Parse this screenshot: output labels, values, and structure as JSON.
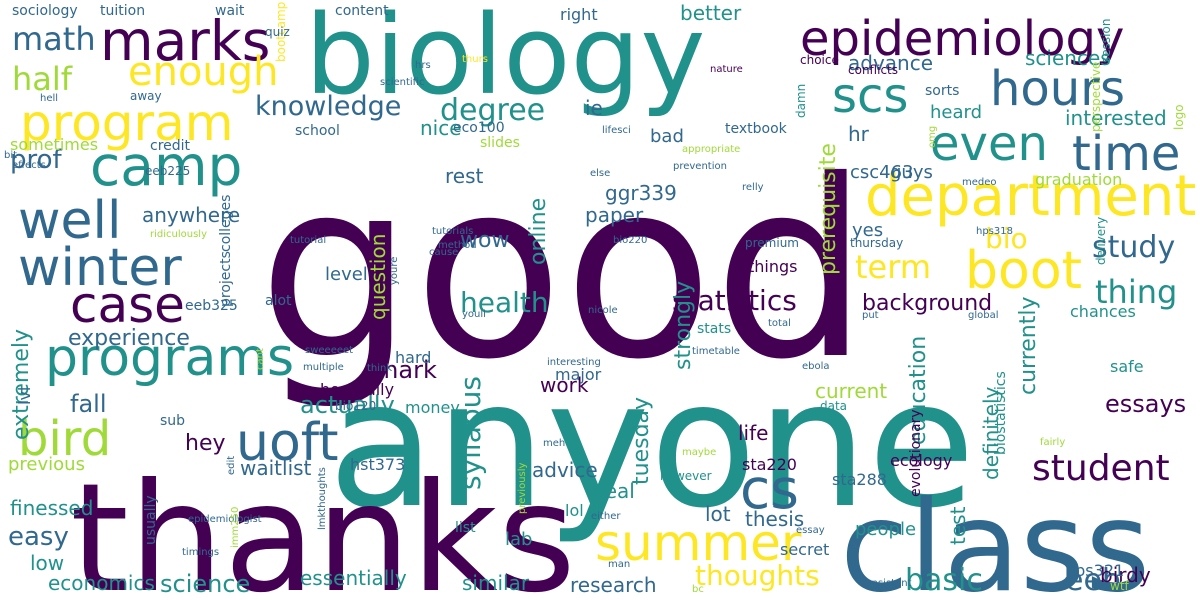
{
  "words": [
    {
      "text": "good",
      "color": "#440154",
      "vertical": false
    },
    {
      "text": "anyone",
      "color": "#21918c",
      "vertical": false
    },
    {
      "text": "thanks",
      "color": "#440154",
      "vertical": false
    },
    {
      "text": "biology",
      "color": "#21918c",
      "vertical": false
    },
    {
      "text": "class",
      "color": "#31688e",
      "vertical": false
    },
    {
      "text": "epidemiology",
      "color": "#440154",
      "vertical": false
    },
    {
      "text": "department",
      "color": "#fde725",
      "vertical": false
    },
    {
      "text": "programs",
      "color": "#21918c",
      "vertical": false
    },
    {
      "text": "program",
      "color": "#fde725",
      "vertical": false
    },
    {
      "text": "marks",
      "color": "#440154",
      "vertical": false
    },
    {
      "text": "winter",
      "color": "#31688e",
      "vertical": false
    },
    {
      "text": "camp",
      "color": "#21918c",
      "vertical": false
    },
    {
      "text": "well",
      "color": "#31688e",
      "vertical": false
    },
    {
      "text": "case",
      "color": "#440154",
      "vertical": false
    },
    {
      "text": "bird",
      "color": "#a0da39",
      "vertical": false
    },
    {
      "text": "uoft",
      "color": "#31688e",
      "vertical": false
    },
    {
      "text": "hours",
      "color": "#31688e",
      "vertical": false
    },
    {
      "text": "even",
      "color": "#21918c",
      "vertical": false
    },
    {
      "text": "time",
      "color": "#31688e",
      "vertical": false
    },
    {
      "text": "scs",
      "color": "#21918c",
      "vertical": false
    },
    {
      "text": "boot",
      "color": "#fde725",
      "vertical": false
    },
    {
      "text": "summer",
      "color": "#fde725",
      "vertical": false
    },
    {
      "text": "cs",
      "color": "#31688e",
      "vertical": false
    },
    {
      "text": "student",
      "color": "#440154",
      "vertical": false
    },
    {
      "text": "enough",
      "color": "#fde725",
      "vertical": false
    },
    {
      "text": "half",
      "color": "#a0da39",
      "vertical": false
    },
    {
      "text": "math",
      "color": "#31688e",
      "vertical": false
    },
    {
      "text": "knowledge",
      "color": "#31688e",
      "vertical": false
    },
    {
      "text": "degree",
      "color": "#21918c",
      "vertical": false
    },
    {
      "text": "statistics",
      "color": "#440154",
      "vertical": false
    },
    {
      "text": "health",
      "color": "#21918c",
      "vertical": false
    },
    {
      "text": "study",
      "color": "#31688e",
      "vertical": false
    },
    {
      "text": "term",
      "color": "#fde725",
      "vertical": false
    },
    {
      "text": "bio",
      "color": "#fde725",
      "vertical": false
    },
    {
      "text": "thing",
      "color": "#21918c",
      "vertical": false
    },
    {
      "text": "basic",
      "color": "#21918c",
      "vertical": false
    },
    {
      "text": "thoughts",
      "color": "#fde725",
      "vertical": false
    },
    {
      "text": "eeb",
      "color": "#31688e",
      "vertical": false
    },
    {
      "text": "prof",
      "color": "#31688e",
      "vertical": false
    },
    {
      "text": "experience",
      "color": "#31688e",
      "vertical": false
    },
    {
      "text": "syllabus",
      "color": "#21918c",
      "vertical": true
    },
    {
      "text": "background",
      "color": "#440154",
      "vertical": false
    },
    {
      "text": "mark",
      "color": "#440154",
      "vertical": false
    },
    {
      "text": "actually",
      "color": "#21918c",
      "vertical": false
    },
    {
      "text": "fall",
      "color": "#31688e",
      "vertical": false
    },
    {
      "text": "hey",
      "color": "#440154",
      "vertical": false
    },
    {
      "text": "waitlist",
      "color": "#31688e",
      "vertical": false
    },
    {
      "text": "advice",
      "color": "#31688e",
      "vertical": false
    },
    {
      "text": "life",
      "color": "#440154",
      "vertical": false
    },
    {
      "text": "work",
      "color": "#440154",
      "vertical": false
    },
    {
      "text": "essays",
      "color": "#440154",
      "vertical": false
    },
    {
      "text": "easy",
      "color": "#31688e",
      "vertical": false
    },
    {
      "text": "low",
      "color": "#21918c",
      "vertical": false
    },
    {
      "text": "economics",
      "color": "#21918c",
      "vertical": false
    },
    {
      "text": "science",
      "color": "#21918c",
      "vertical": false
    },
    {
      "text": "essentially",
      "color": "#21918c",
      "vertical": false
    },
    {
      "text": "similar",
      "color": "#21918c",
      "vertical": false
    },
    {
      "text": "research",
      "color": "#31688e",
      "vertical": false
    },
    {
      "text": "thesis",
      "color": "#31688e",
      "vertical": false
    },
    {
      "text": "lot",
      "color": "#31688e",
      "vertical": false
    },
    {
      "text": "deal",
      "color": "#21918c",
      "vertical": false
    },
    {
      "text": "lab",
      "color": "#21918c",
      "vertical": false
    },
    {
      "text": "secret",
      "color": "#31688e",
      "vertical": false
    },
    {
      "text": "people",
      "color": "#21918c",
      "vertical": false
    },
    {
      "text": "birdy",
      "color": "#440154",
      "vertical": false
    },
    {
      "text": "test",
      "color": "#21918c",
      "vertical": true
    },
    {
      "text": "currently",
      "color": "#21918c",
      "vertical": true
    },
    {
      "text": "definitely",
      "color": "#21918c",
      "vertical": true
    },
    {
      "text": "education",
      "color": "#21918c",
      "vertical": true
    },
    {
      "text": "strongly",
      "color": "#21918c",
      "vertical": true
    },
    {
      "text": "online",
      "color": "#21918c",
      "vertical": true
    },
    {
      "text": "tuesday",
      "color": "#21918c",
      "vertical": true
    },
    {
      "text": "prerequisite",
      "color": "#a0da39",
      "vertical": true
    },
    {
      "text": "extremely",
      "color": "#21918c",
      "vertical": true
    },
    {
      "text": "question",
      "color": "#a0da39",
      "vertical": true
    },
    {
      "text": "level",
      "color": "#31688e",
      "vertical": false
    },
    {
      "text": "things",
      "color": "#440154",
      "vertical": false
    },
    {
      "text": "yes",
      "color": "#31688e",
      "vertical": false
    },
    {
      "text": "csc463",
      "color": "#31688e",
      "vertical": false
    },
    {
      "text": "hr",
      "color": "#31688e",
      "vertical": false
    },
    {
      "text": "guys",
      "color": "#31688e",
      "vertical": false
    },
    {
      "text": "graduation",
      "color": "#a0da39",
      "vertical": false
    },
    {
      "text": "interested",
      "color": "#21918c",
      "vertical": false
    },
    {
      "text": "sciences",
      "color": "#21918c",
      "vertical": false
    },
    {
      "text": "heard",
      "color": "#21918c",
      "vertical": false
    },
    {
      "text": "advance",
      "color": "#31688e",
      "vertical": false
    },
    {
      "text": "anywhere",
      "color": "#31688e",
      "vertical": false
    },
    {
      "text": "sta220",
      "color": "#440154",
      "vertical": false
    },
    {
      "text": "sta288",
      "color": "#31688e",
      "vertical": false
    },
    {
      "text": "ecology",
      "color": "#440154",
      "vertical": false
    },
    {
      "text": "previous",
      "color": "#a0da39",
      "vertical": false
    },
    {
      "text": "finessed",
      "color": "#21918c",
      "vertical": false
    },
    {
      "text": "paper",
      "color": "#31688e",
      "vertical": false
    },
    {
      "text": "ggr339",
      "color": "#31688e",
      "vertical": false
    },
    {
      "text": "wow",
      "color": "#31688e",
      "vertical": false
    },
    {
      "text": "rest",
      "color": "#31688e",
      "vertical": false
    },
    {
      "text": "bad",
      "color": "#31688e",
      "vertical": false
    },
    {
      "text": "ie",
      "color": "#31688e",
      "vertical": false
    },
    {
      "text": "nice",
      "color": "#21918c",
      "vertical": false
    },
    {
      "text": "right",
      "color": "#31688e",
      "vertical": false
    },
    {
      "text": "better",
      "color": "#21918c",
      "vertical": false
    },
    {
      "text": "current",
      "color": "#a0da39",
      "vertical": false
    },
    {
      "text": "chances",
      "color": "#21918c",
      "vertical": false
    },
    {
      "text": "safe",
      "color": "#21918c",
      "vertical": false
    },
    {
      "text": "hopefully",
      "color": "#440154",
      "vertical": false
    },
    {
      "text": "hard",
      "color": "#31688e",
      "vertical": false
    },
    {
      "text": "major",
      "color": "#31688e",
      "vertical": false
    },
    {
      "text": "money",
      "color": "#21918c",
      "vertical": false
    },
    {
      "text": "alot",
      "color": "#31688e",
      "vertical": false
    },
    {
      "text": "wait",
      "color": "#31688e",
      "vertical": false
    },
    {
      "text": "tuition",
      "color": "#31688e",
      "vertical": false
    },
    {
      "text": "sociology",
      "color": "#31688e",
      "vertical": false
    },
    {
      "text": "content",
      "color": "#31688e",
      "vertical": false
    },
    {
      "text": "away",
      "color": "#31688e",
      "vertical": false
    },
    {
      "text": "credit",
      "color": "#31688e",
      "vertical": false
    },
    {
      "text": "sometimes",
      "color": "#a0da39",
      "vertical": false
    },
    {
      "text": "textbook",
      "color": "#31688e",
      "vertical": false
    },
    {
      "text": "sorts",
      "color": "#31688e",
      "vertical": false
    },
    {
      "text": "school",
      "color": "#31688e",
      "vertical": false
    },
    {
      "text": "slides",
      "color": "#a0da39",
      "vertical": false
    },
    {
      "text": "eco100",
      "color": "#31688e",
      "vertical": false
    },
    {
      "text": "hst373",
      "color": "#31688e",
      "vertical": false
    },
    {
      "text": "lol",
      "color": "#21918c",
      "vertical": false
    },
    {
      "text": "bio120",
      "color": "#31688e",
      "vertical": false
    },
    {
      "text": "eeb225",
      "color": "#31688e",
      "vertical": false
    },
    {
      "text": "eeb325",
      "color": "#31688e",
      "vertical": false
    },
    {
      "text": "sub",
      "color": "#31688e",
      "vertical": false
    },
    {
      "text": "hps321",
      "color": "#31688e",
      "vertical": false
    },
    {
      "text": "wtf",
      "color": "#a0da39",
      "vertical": false
    },
    {
      "text": "delivery",
      "color": "#21918c",
      "vertical": true
    },
    {
      "text": "data",
      "color": "#21918c",
      "vertical": false
    },
    {
      "text": "premium",
      "color": "#31688e",
      "vertical": false
    },
    {
      "text": "thursday",
      "color": "#31688e",
      "vertical": false
    },
    {
      "text": "stats",
      "color": "#21918c",
      "vertical": false
    },
    {
      "text": "however",
      "color": "#21918c",
      "vertical": false
    },
    {
      "text": "list",
      "color": "#21918c",
      "vertical": false
    },
    {
      "text": "projects",
      "color": "#31688e",
      "vertical": true
    },
    {
      "text": "colleges",
      "color": "#31688e",
      "vertical": true
    },
    {
      "text": "usually",
      "color": "#31688e",
      "vertical": true
    },
    {
      "text": "lvl",
      "color": "#31688e",
      "vertical": true
    },
    {
      "text": "biostatistics",
      "color": "#21918c",
      "vertical": true
    },
    {
      "text": "evolutionary",
      "color": "#440154",
      "vertical": true
    },
    {
      "text": "bootcamp",
      "color": "#fde725",
      "vertical": true
    },
    {
      "text": "damn",
      "color": "#21918c",
      "vertical": true
    },
    {
      "text": "logo",
      "color": "#a0da39",
      "vertical": true
    },
    {
      "text": "perspective",
      "color": "#a0da39",
      "vertical": true
    },
    {
      "text": "session",
      "color": "#21918c",
      "vertical": true
    },
    {
      "text": "choice",
      "color": "#440154",
      "vertical": false
    },
    {
      "text": "conflicts",
      "color": "#440154",
      "vertical": false
    },
    {
      "text": "nature",
      "color": "#440154",
      "vertical": false
    },
    {
      "text": "thurs",
      "color": "#fde725",
      "vertical": false
    },
    {
      "text": "hrs",
      "color": "#31688e",
      "vertical": false
    },
    {
      "text": "quiz",
      "color": "#31688e",
      "vertical": false
    },
    {
      "text": "hell",
      "color": "#31688e",
      "vertical": false
    },
    {
      "text": "bit",
      "color": "#31688e",
      "vertical": false
    },
    {
      "text": "effects",
      "color": "#31688e",
      "vertical": false
    },
    {
      "text": "ridiculously",
      "color": "#a0da39",
      "vertical": false
    },
    {
      "text": "lifesci",
      "color": "#31688e",
      "vertical": false
    },
    {
      "text": "appropriate",
      "color": "#a0da39",
      "vertical": false
    },
    {
      "text": "prevention",
      "color": "#31688e",
      "vertical": false
    },
    {
      "text": "else",
      "color": "#31688e",
      "vertical": false
    },
    {
      "text": "relly",
      "color": "#31688e",
      "vertical": false
    },
    {
      "text": "medeo",
      "color": "#31688e",
      "vertical": false
    },
    {
      "text": "method",
      "color": "#31688e",
      "vertical": false
    },
    {
      "text": "tutorials",
      "color": "#31688e",
      "vertical": false
    },
    {
      "text": "bio220",
      "color": "#31688e",
      "vertical": false
    },
    {
      "text": "tutorial",
      "color": "#31688e",
      "vertical": false
    },
    {
      "text": "hps318",
      "color": "#31688e",
      "vertical": false
    },
    {
      "text": "put",
      "color": "#31688e",
      "vertical": false
    },
    {
      "text": "global",
      "color": "#31688e",
      "vertical": false
    },
    {
      "text": "total",
      "color": "#31688e",
      "vertical": false
    },
    {
      "text": "timetable",
      "color": "#31688e",
      "vertical": false
    },
    {
      "text": "ebola",
      "color": "#31688e",
      "vertical": false
    },
    {
      "text": "think",
      "color": "#31688e",
      "vertical": false
    },
    {
      "text": "youll",
      "color": "#31688e",
      "vertical": false
    },
    {
      "text": "nicole",
      "color": "#31688e",
      "vertical": false
    },
    {
      "text": "sweeeeet",
      "color": "#31688e",
      "vertical": false
    },
    {
      "text": "multiple",
      "color": "#31688e",
      "vertical": false
    },
    {
      "text": "interesting",
      "color": "#31688e",
      "vertical": false
    },
    {
      "text": "meh",
      "color": "#31688e",
      "vertical": false
    },
    {
      "text": "maybe",
      "color": "#a0da39",
      "vertical": false
    },
    {
      "text": "fairly",
      "color": "#a0da39",
      "vertical": false
    },
    {
      "text": "edit",
      "color": "#31688e",
      "vertical": true
    },
    {
      "text": "either",
      "color": "#31688e",
      "vertical": false
    },
    {
      "text": "essay",
      "color": "#31688e",
      "vertical": false
    },
    {
      "text": "epidemiologist",
      "color": "#31688e",
      "vertical": false
    },
    {
      "text": "timings",
      "color": "#31688e",
      "vertical": false
    },
    {
      "text": "man",
      "color": "#31688e",
      "vertical": false
    },
    {
      "text": "bc",
      "color": "#a0da39",
      "vertical": false
    },
    {
      "text": "consistent",
      "color": "#31688e",
      "vertical": false
    },
    {
      "text": "scientific",
      "color": "#31688e",
      "vertical": false
    },
    {
      "text": "cause",
      "color": "#31688e",
      "vertical": false
    },
    {
      "text": "youre",
      "color": "#31688e",
      "vertical": true
    },
    {
      "text": "omg",
      "color": "#a0da39",
      "vertical": true
    },
    {
      "text": "cant",
      "color": "#a0da39",
      "vertical": true
    },
    {
      "text": "imm250",
      "color": "#a0da39",
      "vertical": true
    },
    {
      "text": "lmkthoughts",
      "color": "#31688e",
      "vertical": true
    },
    {
      "text": "previously",
      "color": "#a0da39",
      "vertical": true
    },
    {
      "text": "suggestions",
      "color": "#a0da39",
      "vertical": true
    },
    {
      "text": "bless",
      "color": "#a0da39",
      "vertical": true
    }
  ]
}
